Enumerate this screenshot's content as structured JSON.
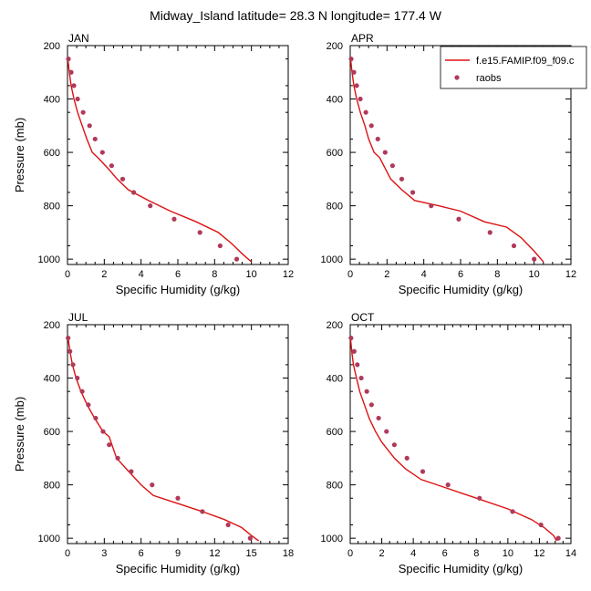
{
  "title": "Midway_Island  latitude= 28.3 N longitude= 177.4 W",
  "legend": {
    "items": [
      {
        "label": "f.e15.FAMIP.f09_f09.c",
        "kind": "line",
        "color": "#dd1111"
      },
      {
        "label": "raobs",
        "kind": "marker",
        "color": "#b03a5a"
      }
    ]
  },
  "colors": {
    "model": "#dd1111",
    "obs": "#b03a5a"
  },
  "chart_data": [
    {
      "type": "line",
      "panel": "JAN",
      "xlabel": "Specific Humidity (g/kg)",
      "ylabel": "Pressure (mb)",
      "xlim": [
        0,
        12
      ],
      "ylim": [
        1020,
        200
      ],
      "xticks": [
        0,
        2,
        4,
        6,
        8,
        10,
        12
      ],
      "yticks": [
        200,
        400,
        600,
        800,
        1000
      ],
      "series": [
        {
          "kind": "line",
          "x": [
            0.02,
            0.1,
            0.2,
            0.35,
            0.55,
            0.8,
            1.05,
            1.35,
            1.65,
            2.2,
            2.7,
            3.3,
            4.4,
            5.6,
            7.0,
            8.2,
            8.9,
            9.5,
            10.0
          ],
          "y": [
            250,
            300,
            350,
            400,
            450,
            500,
            550,
            600,
            620,
            660,
            700,
            740,
            780,
            820,
            860,
            900,
            940,
            980,
            1010
          ]
        },
        {
          "kind": "scatter",
          "x": [
            0.05,
            0.2,
            0.35,
            0.55,
            0.85,
            1.2,
            1.5,
            1.9,
            2.4,
            3.0,
            3.6,
            4.5,
            5.8,
            7.2,
            8.3,
            9.2
          ],
          "y": [
            250,
            300,
            350,
            400,
            450,
            500,
            550,
            600,
            650,
            700,
            750,
            800,
            850,
            900,
            950,
            1000
          ]
        }
      ]
    },
    {
      "type": "line",
      "panel": "APR",
      "xlabel": "Specific Humidity (g/kg)",
      "ylabel": "",
      "xlim": [
        0,
        12
      ],
      "ylim": [
        1020,
        200
      ],
      "xticks": [
        0,
        2,
        4,
        6,
        8,
        10,
        12
      ],
      "yticks": [
        200,
        400,
        600,
        800,
        1000
      ],
      "series": [
        {
          "kind": "line",
          "x": [
            0.02,
            0.1,
            0.2,
            0.35,
            0.55,
            0.8,
            1.0,
            1.3,
            1.6,
            2.2,
            2.8,
            3.5,
            4.8,
            6.0,
            7.3,
            8.5,
            9.3,
            10.0,
            10.5
          ],
          "y": [
            250,
            300,
            350,
            400,
            450,
            500,
            550,
            600,
            620,
            700,
            740,
            780,
            800,
            820,
            860,
            880,
            920,
            970,
            1010
          ]
        },
        {
          "kind": "scatter",
          "x": [
            0.05,
            0.2,
            0.35,
            0.55,
            0.85,
            1.15,
            1.5,
            1.9,
            2.3,
            2.8,
            3.4,
            4.4,
            5.9,
            7.6,
            8.9,
            10.0
          ],
          "y": [
            250,
            300,
            350,
            400,
            450,
            500,
            550,
            600,
            650,
            700,
            750,
            800,
            850,
            900,
            950,
            1000
          ]
        }
      ]
    },
    {
      "type": "line",
      "panel": "JUL",
      "xlabel": "Specific Humidity (g/kg)",
      "ylabel": "Pressure (mb)",
      "xlim": [
        0,
        18
      ],
      "ylim": [
        1020,
        200
      ],
      "xticks": [
        0,
        3,
        6,
        9,
        12,
        15,
        18
      ],
      "yticks": [
        200,
        400,
        600,
        800,
        1000
      ],
      "series": [
        {
          "kind": "line",
          "x": [
            0.05,
            0.2,
            0.4,
            0.7,
            1.1,
            1.6,
            2.2,
            2.9,
            3.4,
            4.0,
            5.0,
            6.0,
            7.0,
            9.0,
            11.0,
            12.8,
            14.2,
            15.0,
            15.6
          ],
          "y": [
            250,
            300,
            350,
            400,
            450,
            500,
            550,
            600,
            620,
            700,
            750,
            800,
            840,
            870,
            900,
            930,
            960,
            990,
            1010
          ]
        },
        {
          "kind": "scatter",
          "x": [
            0.05,
            0.2,
            0.45,
            0.8,
            1.2,
            1.7,
            2.3,
            2.9,
            3.4,
            4.1,
            5.2,
            6.9,
            9.0,
            11.0,
            13.1,
            14.9
          ],
          "y": [
            250,
            300,
            350,
            400,
            450,
            500,
            550,
            600,
            650,
            700,
            750,
            800,
            850,
            900,
            950,
            1000
          ]
        }
      ]
    },
    {
      "type": "line",
      "panel": "OCT",
      "xlabel": "Specific Humidity (g/kg)",
      "ylabel": "",
      "xlim": [
        0,
        14
      ],
      "ylim": [
        1020,
        200
      ],
      "xticks": [
        0,
        2,
        4,
        6,
        8,
        10,
        12,
        14
      ],
      "yticks": [
        200,
        400,
        600,
        800,
        1000
      ],
      "series": [
        {
          "kind": "line",
          "x": [
            0.02,
            0.1,
            0.2,
            0.4,
            0.6,
            0.9,
            1.2,
            1.6,
            2.0,
            2.8,
            3.5,
            4.5,
            6.0,
            8.0,
            10.0,
            11.5,
            12.3,
            12.9,
            13.1
          ],
          "y": [
            250,
            300,
            350,
            400,
            450,
            500,
            550,
            600,
            640,
            700,
            740,
            780,
            810,
            850,
            890,
            930,
            960,
            990,
            1010
          ]
        },
        {
          "kind": "scatter",
          "x": [
            0.05,
            0.25,
            0.45,
            0.7,
            1.05,
            1.35,
            1.8,
            2.3,
            2.8,
            3.6,
            4.6,
            6.2,
            8.2,
            10.3,
            12.1,
            13.2
          ],
          "y": [
            250,
            300,
            350,
            400,
            450,
            500,
            550,
            600,
            650,
            700,
            750,
            800,
            850,
            900,
            950,
            1000
          ]
        }
      ]
    }
  ]
}
